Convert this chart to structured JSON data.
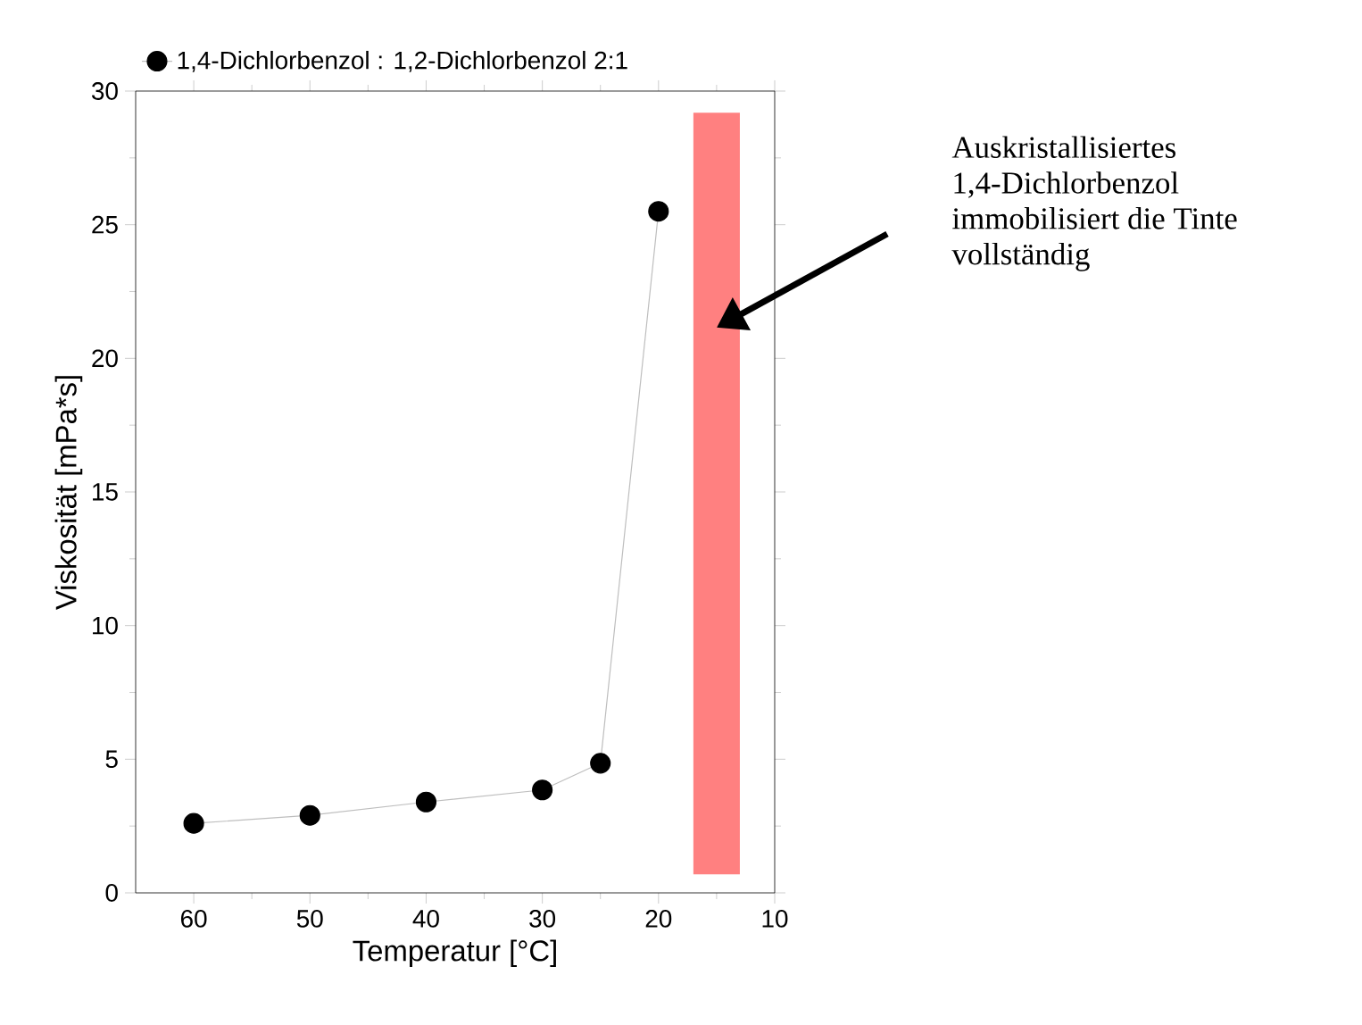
{
  "chart_data": {
    "type": "line",
    "xlabel": "Temperatur [°C]",
    "ylabel": "Viskosität [mPa*s]",
    "x": [
      60,
      50,
      40,
      30,
      25,
      20
    ],
    "series": [
      {
        "name": "1,4-Dichlorbenzol : 1,2-Dichlorbenzol 2:1",
        "color": "#000000",
        "values": [
          2.6,
          2.9,
          3.4,
          3.85,
          4.85,
          25.5
        ]
      }
    ],
    "xlim": [
      65,
      10
    ],
    "xticks": [
      60,
      50,
      40,
      30,
      20,
      10
    ],
    "ylim": [
      0,
      30
    ],
    "yticks": [
      0,
      5,
      10,
      15,
      20,
      25,
      30
    ],
    "bands": [
      {
        "axis": "x",
        "from": 17,
        "to": 13,
        "color": "#ff8080"
      }
    ],
    "annotations": [
      "Auskristallisiertes 1,4-Dichlorbenzol immobilisiert die Tinte vollständig"
    ],
    "marker": "circle",
    "line_style": "solid",
    "legend": "top",
    "grid": false
  }
}
